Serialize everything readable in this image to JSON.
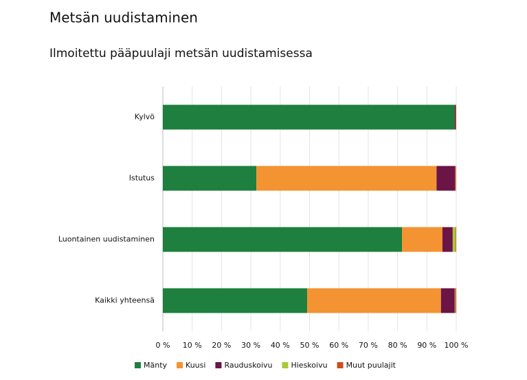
{
  "chart_data": {
    "type": "stacked-bar-horizontal",
    "title": "Metsän uudistaminen",
    "subtitle": "Ilmoitettu pääpuulaji metsän uudistamisessa",
    "categories": [
      "Kylvö",
      "Istutus",
      "Luontainen uudistaminen",
      "Kaikki yhteensä"
    ],
    "series": [
      {
        "name": "Mänty",
        "color": "#1e7f3e",
        "values": [
          99.5,
          31.9,
          81.5,
          49.2
        ]
      },
      {
        "name": "Kuusi",
        "color": "#f39332",
        "values": [
          0,
          61.4,
          13.8,
          45.6
        ]
      },
      {
        "name": "Rauduskoivu",
        "color": "#6b1446",
        "values": [
          0.3,
          6.3,
          3.5,
          4.7
        ]
      },
      {
        "name": "Hieskoivu",
        "color": "#a8c83c",
        "values": [
          0,
          0,
          1.0,
          0.2
        ]
      },
      {
        "name": "Muut puulajit",
        "color": "#c8501e",
        "values": [
          0.2,
          0.3,
          0.2,
          0.3
        ]
      }
    ],
    "xlim": [
      0,
      100
    ],
    "xticks": [
      {
        "value": 0,
        "label": "0 %"
      },
      {
        "value": 10,
        "label": "10 %"
      },
      {
        "value": 20,
        "label": "20 %"
      },
      {
        "value": 30,
        "label": "30 %"
      },
      {
        "value": 40,
        "label": "40 %"
      },
      {
        "value": 50,
        "label": "50 %"
      },
      {
        "value": 60,
        "label": "60 %"
      },
      {
        "value": 70,
        "label": "70 %"
      },
      {
        "value": 80,
        "label": "80 %"
      },
      {
        "value": 90,
        "label": "90 %"
      },
      {
        "value": 100,
        "label": "100 %"
      }
    ],
    "grid": true,
    "legend": "bottom"
  }
}
